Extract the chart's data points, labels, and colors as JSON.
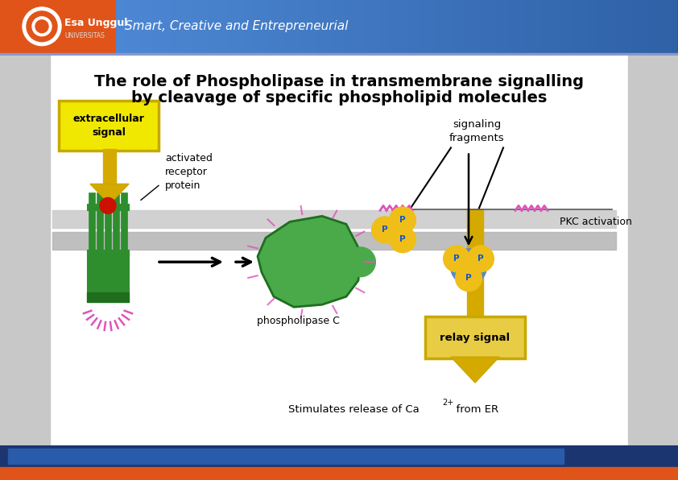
{
  "title_line1": "The role of Phospholipase in transmembrane signalling",
  "title_line2": "by cleavage of specific phospholipid molecules",
  "header_text": "Smart, Creative and Entrepreneurial",
  "header_bg_dark": "#1a3f7a",
  "header_bg_mid": "#2060b0",
  "header_bg_light": "#3a80d0",
  "header_orange": "#e0541a",
  "footer_blue": "#1a3570",
  "footer_orange": "#e0541a",
  "footer_light_blue": "#2a5aaa",
  "main_bg": "#d8d8d8",
  "content_bg": "#ffffff",
  "sidebar_bg": "#c8c8c8",
  "title_color": "#000000",
  "mem_color1": "#c8c8c8",
  "mem_color2": "#b8b8b8",
  "label_extracellular": "extracellular\nsignal",
  "label_activated": "activated\nreceptor\nprotein",
  "label_signaling": "signaling\nfragments",
  "label_pkc": "PKC activation",
  "label_phospholipase": "phospholipase C",
  "label_relay": "relay signal",
  "label_stimulates": "Stimulates release of Ca",
  "label_stimulates_super": "2+",
  "label_stimulates_end": "  from ER",
  "yellow_box_color": "#f0e800",
  "yellow_box_edge": "#c8a800",
  "relay_box_color": "#e8cc44",
  "relay_box_edge": "#c8a800",
  "arrow_yellow": "#d4aa00",
  "p_ball_yellow": "#f0be18",
  "p_ball_edge": "#b88800",
  "p_letter_color": "#1155cc",
  "p_ball_blue_center": "#5588cc",
  "green_dark": "#1e6e1e",
  "green_mid": "#2e8e2e",
  "green_light": "#4aaa4a",
  "red_ligand": "#cc1100",
  "pink_wave": "#dd55bb",
  "arrow_black": "#111111",
  "text_black": "#111111",
  "header_border": "#6688cc"
}
